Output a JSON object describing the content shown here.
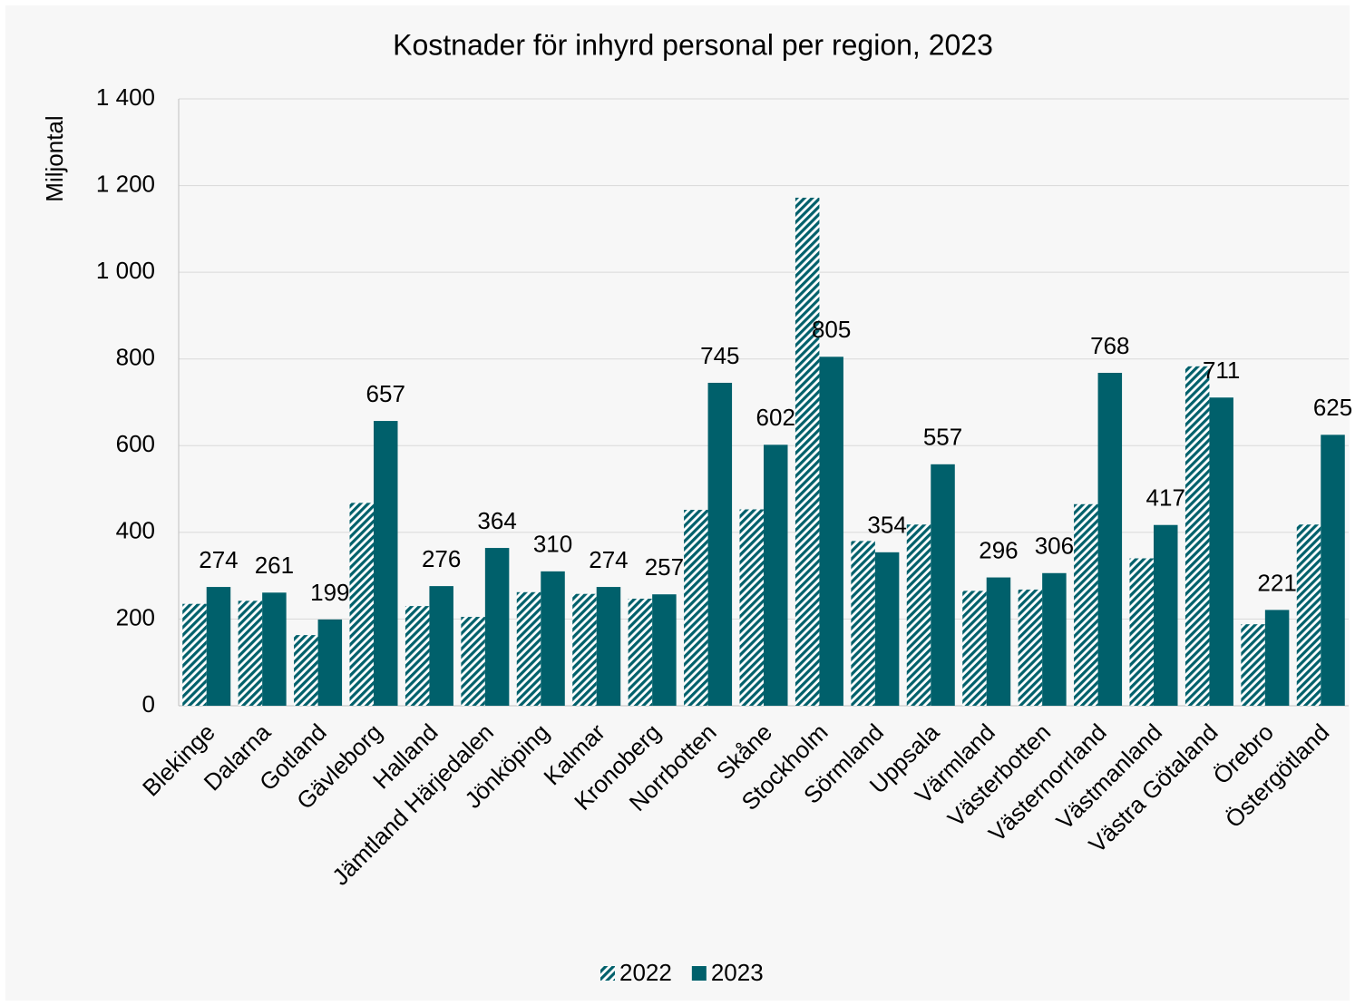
{
  "chart_data": {
    "type": "bar",
    "title": "Kostnader för inhyrd personal per region, 2023",
    "y_label": "Miljontal",
    "categories": [
      "Blekinge",
      "Dalarna",
      "Gotland",
      "Gävleborg",
      "Halland",
      "Jämtland Härjedalen",
      "Jönköping",
      "Kalmar",
      "Kronoberg",
      "Norrbotten",
      "Skåne",
      "Stockholm",
      "Sörmland",
      "Uppsala",
      "Värmland",
      "Västerbotten",
      "Västernorrland",
      "Västmanland",
      "Västra Götaland",
      "Örebro",
      "Östergötland"
    ],
    "series": [
      {
        "name": "2022",
        "color": "#00606b",
        "pattern": "hatched",
        "values": [
          235,
          242,
          163,
          468,
          230,
          205,
          262,
          258,
          247,
          452,
          453,
          1172,
          380,
          418,
          265,
          268,
          465,
          340,
          783,
          188,
          418
        ]
      },
      {
        "name": "2023",
        "color": "#00606b",
        "values": [
          274,
          261,
          199,
          657,
          276,
          364,
          310,
          274,
          257,
          745,
          602,
          805,
          354,
          557,
          296,
          306,
          768,
          417,
          711,
          221,
          625
        ]
      }
    ],
    "ylim": [
      0,
      1400
    ],
    "yticks": [
      0,
      200,
      400,
      600,
      800,
      {
        "value": 1000,
        "label": "1 000"
      },
      {
        "value": 1200,
        "label": "1 200"
      },
      {
        "value": 1400,
        "label": "1 400"
      }
    ],
    "grid": true,
    "legend": "bottom"
  }
}
